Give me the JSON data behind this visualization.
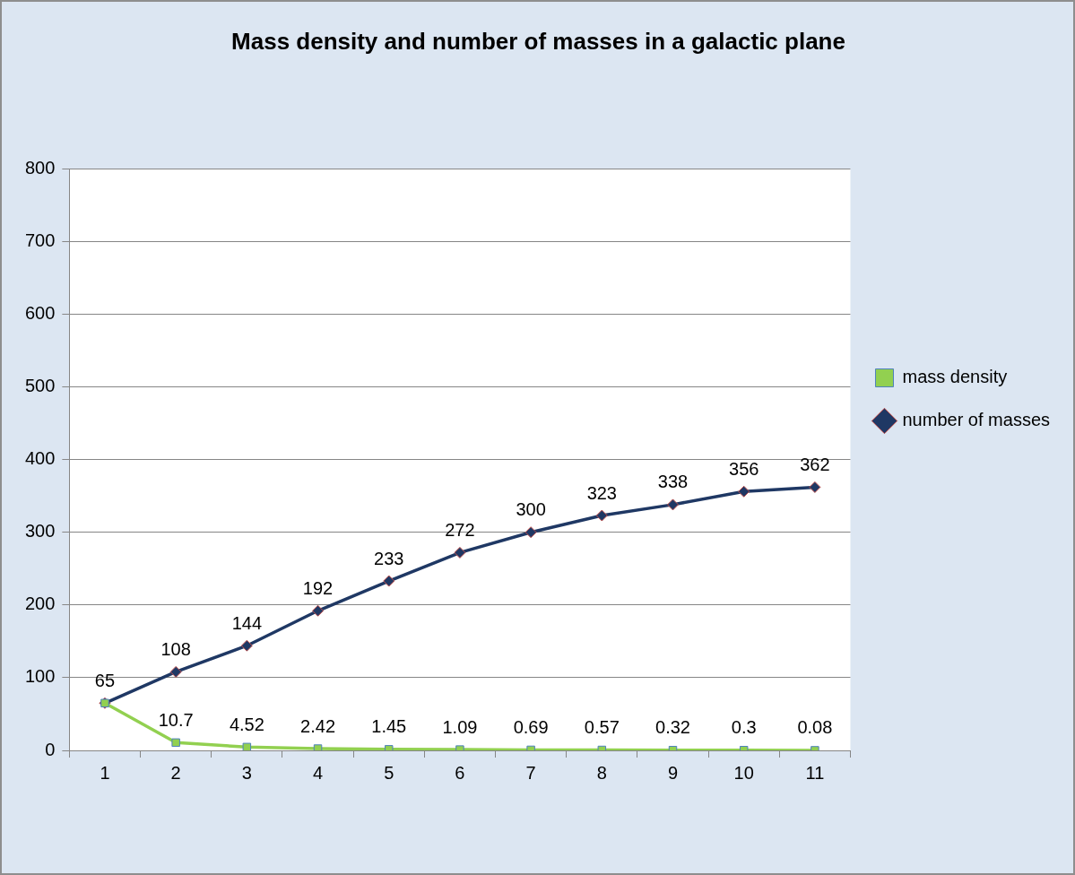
{
  "chart_data": {
    "type": "line",
    "title": "Mass density and number of masses in a galactic plane",
    "categories": [
      "1",
      "2",
      "3",
      "4",
      "5",
      "6",
      "7",
      "8",
      "9",
      "10",
      "11"
    ],
    "series": [
      {
        "name": "mass density",
        "color": "#92d050",
        "marker": "square",
        "values": [
          65,
          10.7,
          4.52,
          2.42,
          1.45,
          1.09,
          0.69,
          0.57,
          0.32,
          0.3,
          0.08
        ],
        "value_labels": [
          null,
          "10.7",
          "4.52",
          "2.42",
          "1.45",
          "1.09",
          "0.69",
          "0.57",
          "0.32",
          "0.3",
          "0.08"
        ]
      },
      {
        "name": "number of masses",
        "color": "#1f3864",
        "marker": "diamond",
        "values": [
          65,
          108,
          144,
          192,
          233,
          272,
          300,
          323,
          338,
          356,
          362
        ],
        "value_labels": [
          "65",
          "108",
          "144",
          "192",
          "233",
          "272",
          "300",
          "323",
          "338",
          "356",
          "362"
        ]
      }
    ],
    "ylim": [
      0,
      800
    ],
    "yticks": [
      0,
      100,
      200,
      300,
      400,
      500,
      600,
      700,
      800
    ],
    "grid": "y",
    "legend": "right"
  }
}
